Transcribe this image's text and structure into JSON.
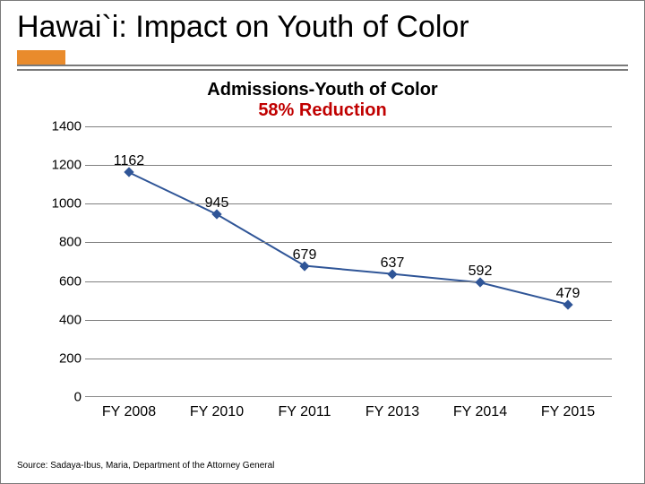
{
  "slide": {
    "title": "Hawai`i:  Impact on Youth of Color",
    "accent_color": "#e98b2c",
    "rule_color": "#7a7a7a",
    "source": "Source: Sadaya-Ibus, Maria, Department of the Attorney General"
  },
  "chart": {
    "type": "line",
    "title_line1": "Admissions-Youth of Color",
    "title_line2": "58% Reduction",
    "title_color": "#000000",
    "sub_color": "#c00000",
    "title_fontsize": 20,
    "background_color": "#ffffff",
    "grid_color": "#808080",
    "grid_width": 1,
    "axis_color": "#888888",
    "ylim": [
      0,
      1400
    ],
    "ytick_step": 200,
    "yticks": [
      0,
      200,
      400,
      600,
      800,
      1000,
      1200,
      1400
    ],
    "categories": [
      "FY 2008",
      "FY 2010",
      "FY 2011",
      "FY 2013",
      "FY 2014",
      "FY 2015"
    ],
    "series": {
      "name": "Admissions",
      "values": [
        1162,
        945,
        679,
        637,
        592,
        479
      ],
      "line_color": "#2f5597",
      "line_width": 2,
      "marker": "diamond",
      "marker_size": 8,
      "marker_color": "#2f5597",
      "data_label_color": "#000000",
      "data_label_fontsize": 16
    },
    "label_fontsize": 15,
    "xlabel_fontsize": 16
  }
}
